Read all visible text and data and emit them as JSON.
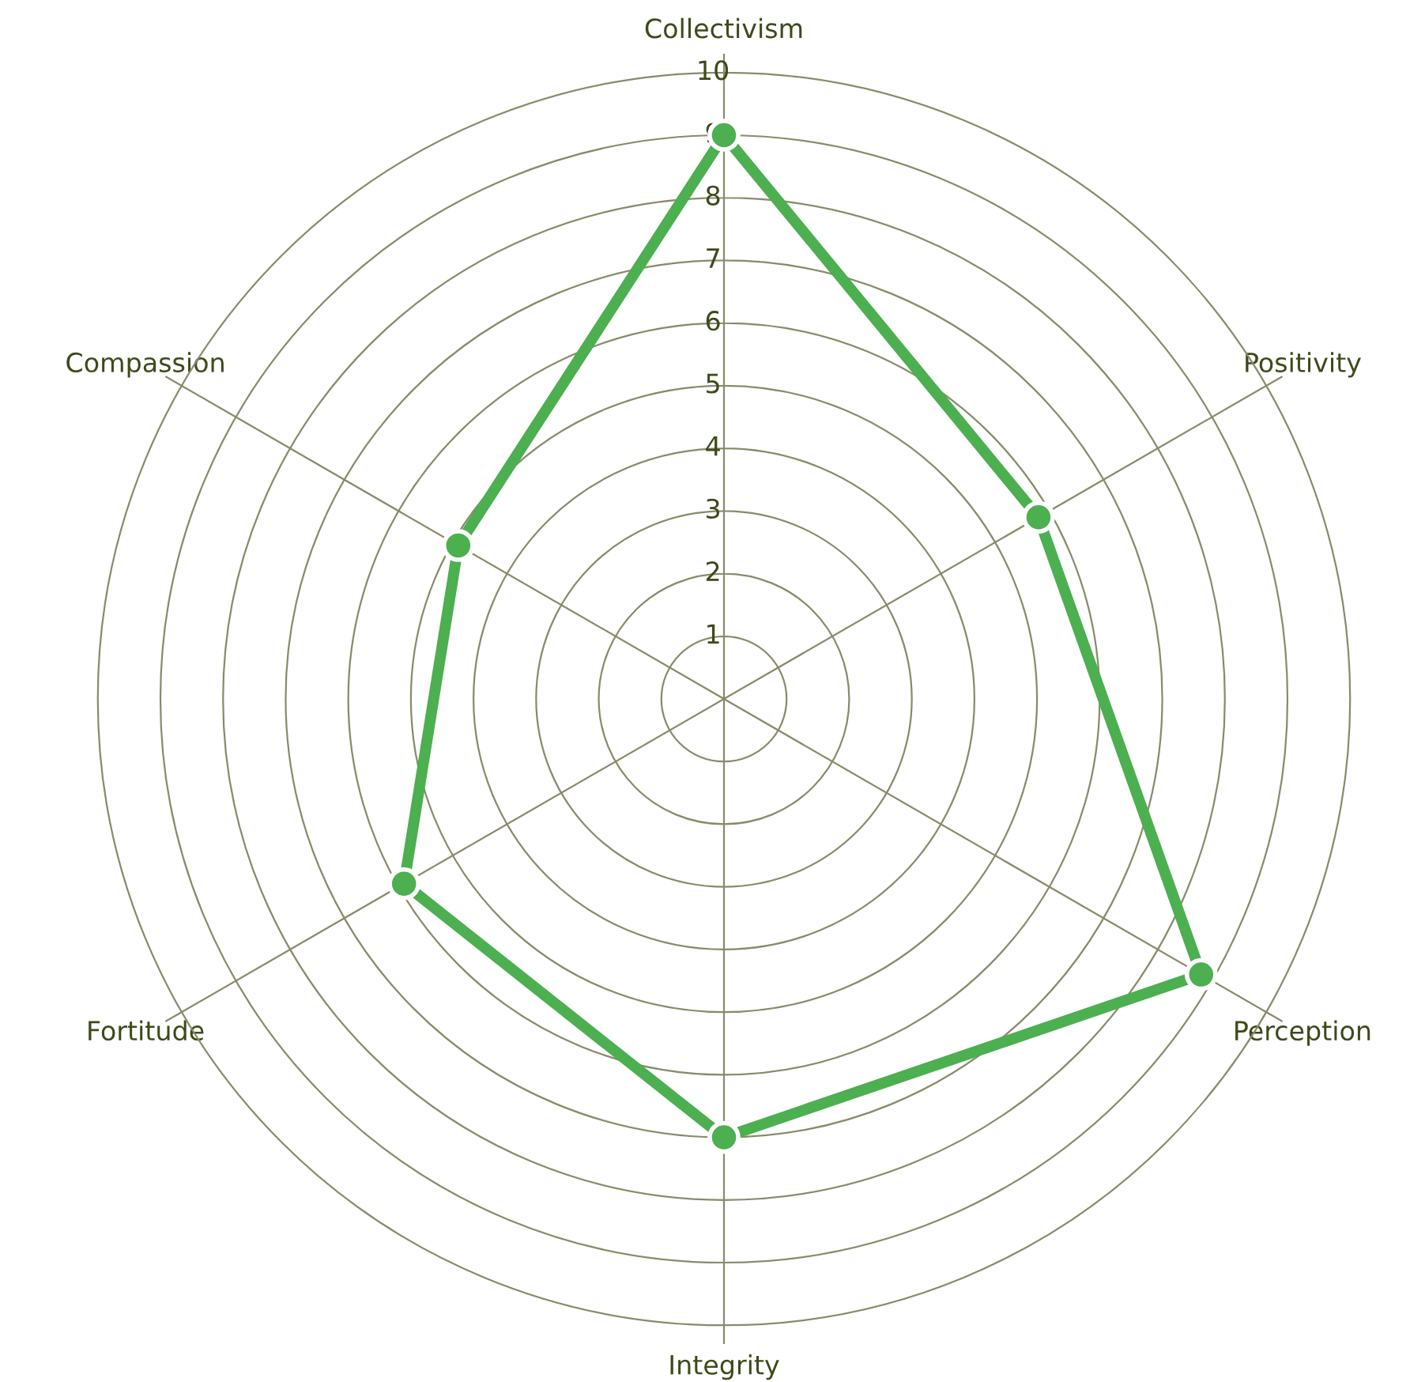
{
  "chart_data": {
    "type": "radar",
    "categories": [
      "Collectivism",
      "Positivity",
      "Perception",
      "Integrity",
      "Fortitude",
      "Compassion"
    ],
    "series": [
      {
        "color": "#4caf50",
        "values": [
          9,
          5.8,
          8.8,
          7,
          5.9,
          4.9
        ]
      }
    ],
    "ylim": [
      0,
      10.3
    ],
    "yticks": [
      1,
      2,
      3,
      4,
      5,
      6,
      7,
      8,
      9,
      10
    ],
    "grid": true,
    "marker": "circle",
    "line_style": "solid",
    "legend": false
  }
}
